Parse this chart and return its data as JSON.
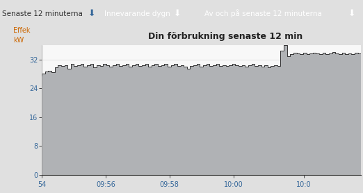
{
  "title": "Din förbrukning senaste 12 min",
  "ylabel_line1": "Effek",
  "ylabel_line2": "kW",
  "yticks": [
    0,
    8,
    16,
    24,
    32
  ],
  "xtick_labels": [
    "54",
    "09:56",
    "09:58",
    "10:00",
    "10:0"
  ],
  "xtick_positions": [
    0,
    20,
    40,
    60,
    82
  ],
  "ylim": [
    0,
    36
  ],
  "xlim": [
    0,
    100
  ],
  "fill_color": "#b0b2b5",
  "line_color": "#333333",
  "bg_color": "#f0f0f0",
  "plot_bg_color": "#f8f8f8",
  "outer_bg": "#e0e0e0",
  "title_color": "#222222",
  "tab1_text": "Senaste 12 minuterna",
  "tab2_text": "Innevarande dygn",
  "tab3_text": "Av och på senaste 12 minuterna",
  "tab1_bg": "#dde4ea",
  "tab2_bg": "#1a5fa8",
  "tab3_bg": "#1a5fa8",
  "tab_text_color1": "#333333",
  "tab_text_color2": "#ffffff",
  "grid_color": "#d8d8d8",
  "axis_label_color": "#cc6600",
  "tick_color": "#336699",
  "data_y": [
    27.5,
    28.2,
    28.8,
    29.0,
    28.6,
    29.8,
    30.5,
    30.2,
    30.5,
    29.5,
    30.8,
    30.2,
    30.5,
    30.8,
    30.0,
    30.5,
    30.8,
    29.8,
    30.5,
    30.2,
    30.8,
    30.5,
    30.0,
    30.5,
    30.8,
    30.2,
    30.5,
    30.8,
    30.0,
    30.5,
    30.8,
    30.2,
    30.5,
    30.8,
    30.0,
    30.5,
    30.8,
    30.2,
    30.5,
    30.8,
    30.0,
    30.5,
    30.8,
    30.2,
    30.5,
    30.0,
    29.5,
    30.2,
    30.5,
    30.8,
    30.0,
    30.5,
    30.8,
    30.2,
    30.5,
    30.8,
    30.2,
    30.5,
    30.2,
    30.5,
    30.8,
    30.5,
    30.2,
    30.5,
    30.0,
    30.5,
    30.8,
    30.2,
    30.5,
    30.0,
    30.5,
    29.8,
    30.2,
    30.5,
    30.2,
    34.5,
    36.0,
    33.0,
    33.5,
    34.0,
    33.8,
    33.5,
    34.0,
    33.5,
    33.8,
    34.0,
    33.8,
    33.5,
    34.0,
    33.5,
    33.8,
    34.2,
    33.8,
    33.5,
    34.0,
    33.5,
    33.8,
    33.5,
    34.0,
    33.8
  ]
}
